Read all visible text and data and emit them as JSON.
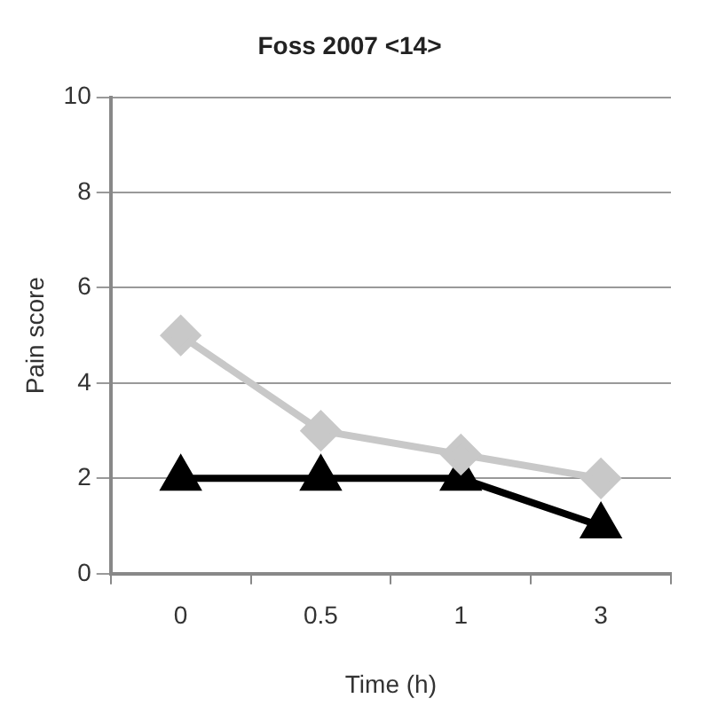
{
  "chart_data": {
    "type": "line",
    "title": "Foss 2007 <14>",
    "xlabel": "Time (h)",
    "ylabel": "Pain score",
    "categories": [
      "0",
      "0.5",
      "1",
      "3"
    ],
    "series": [
      {
        "color": "#c8c8c8",
        "marker": "diamond",
        "values": [
          5,
          3,
          2.5,
          2
        ]
      },
      {
        "color": "#000000",
        "marker": "triangle",
        "values": [
          2,
          2,
          2,
          1
        ]
      }
    ],
    "ylim": [
      0,
      10
    ],
    "yticks": [
      0,
      2,
      4,
      6,
      8,
      10
    ],
    "grid": "y",
    "legend": false,
    "line_style": "solid"
  }
}
